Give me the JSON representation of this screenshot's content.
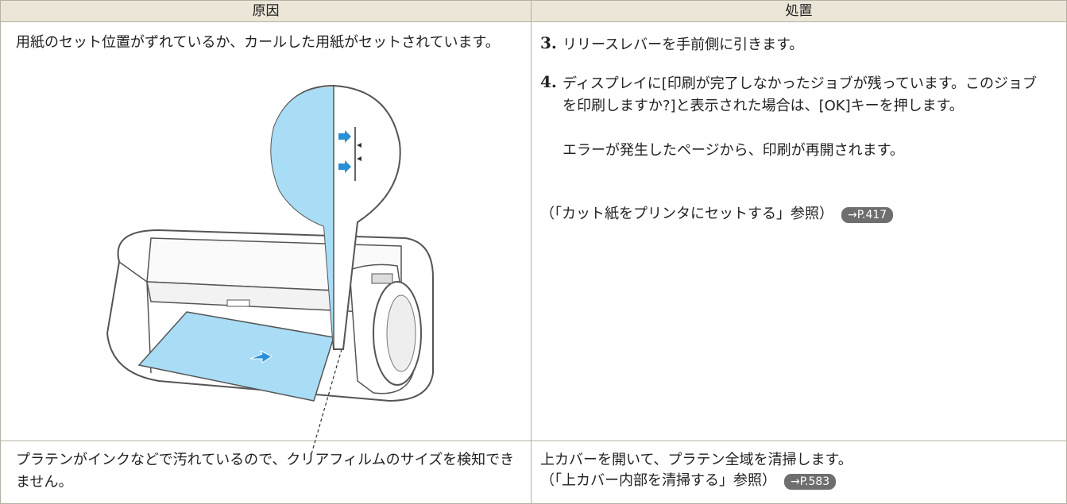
{
  "table": {
    "headers": [
      "原因",
      "処置"
    ],
    "rows": [
      {
        "cause": "用紙のセット位置がずれているか、カールした用紙がセットされています。",
        "steps": [
          {
            "number": "3.",
            "text": "リリースレバーを手前側に引きます。"
          },
          {
            "number": "4.",
            "text": "ディスプレイに[印刷が完了しなかったジョブが残っています。このジョブを印刷しますか?]と表示された場合は、[OK]キーを押します。",
            "note": "エラーが発生したページから、印刷が再開されます。"
          }
        ],
        "reference": {
          "text": "（「カット紙をプリンタにセットする」参照）",
          "link": "→P.417"
        }
      },
      {
        "cause": "プラテンがインクなどで汚れているので、クリアフィルムのサイズを検知できません。",
        "action": "上カバーを開いて、プラテン全域を清掃します。",
        "reference": {
          "text": "（「上カバー内部を清掃する」参照）",
          "link": "→P.583"
        }
      }
    ]
  }
}
